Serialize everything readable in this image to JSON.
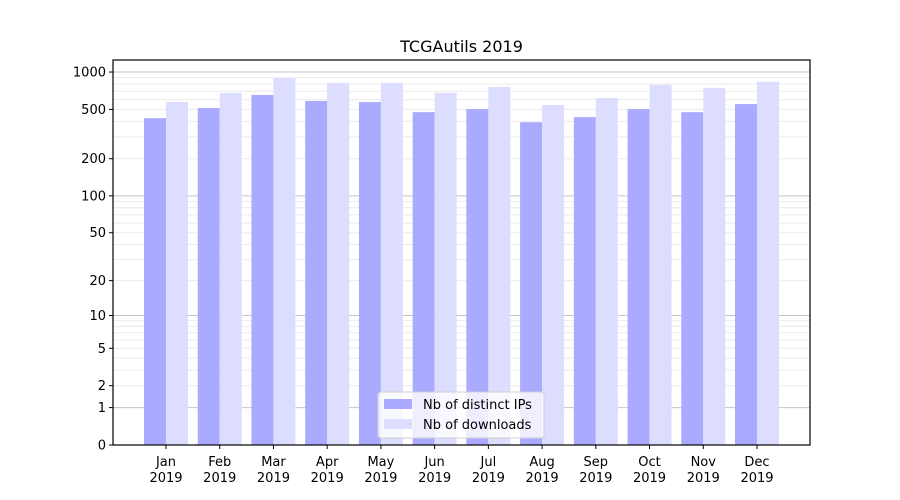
{
  "chart_data": {
    "type": "bar",
    "title": "TCGAutils 2019",
    "xlabel": "",
    "ylabel": "",
    "yscale": "log(y+1)",
    "ylim": [
      0,
      1250
    ],
    "yticks": [
      0,
      1,
      2,
      5,
      10,
      20,
      50,
      100,
      200,
      500,
      1000
    ],
    "ytick_labels": [
      "0",
      "1",
      "2",
      "5",
      "10",
      "20",
      "50",
      "100",
      "200",
      "500",
      "1000"
    ],
    "categories": [
      "Jan\n2019",
      "Feb\n2019",
      "Mar\n2019",
      "Apr\n2019",
      "May\n2019",
      "Jun\n2019",
      "Jul\n2019",
      "Aug\n2019",
      "Sep\n2019",
      "Oct\n2019",
      "Nov\n2019",
      "Dec\n2019"
    ],
    "series": [
      {
        "name": "Nb of distinct IPs",
        "color": "#aaaaff",
        "values": [
          425,
          513,
          654,
          585,
          573,
          475,
          503,
          394,
          433,
          503,
          475,
          552
        ]
      },
      {
        "name": "Nb of downloads",
        "color": "#ddddff",
        "values": [
          573,
          679,
          899,
          818,
          818,
          679,
          759,
          542,
          618,
          788,
          745,
          834
        ]
      }
    ],
    "grid": true,
    "legend": "bottom-center"
  }
}
